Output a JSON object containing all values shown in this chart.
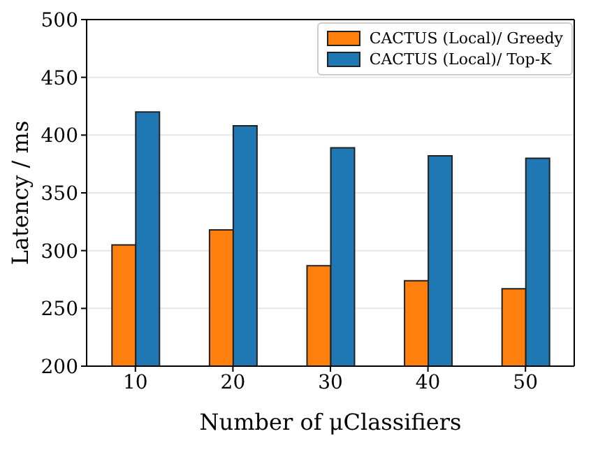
{
  "chart_data": {
    "type": "bar",
    "xlabel": "Number of μClassifiers",
    "ylabel": "Latency / ms",
    "categories": [
      "10",
      "20",
      "30",
      "40",
      "50"
    ],
    "series": [
      {
        "name": "CACTUS (Local)/ Greedy",
        "color": "#ff7f0e",
        "values": [
          305,
          318,
          287,
          274,
          267
        ]
      },
      {
        "name": "CACTUS (Local)/ Top-K",
        "color": "#1f77b4",
        "values": [
          420,
          408,
          389,
          382,
          380
        ]
      }
    ],
    "ylim": [
      200,
      500
    ],
    "yticks": [
      200,
      250,
      300,
      350,
      400,
      450,
      500
    ],
    "grid": "y",
    "legend": "top right"
  }
}
